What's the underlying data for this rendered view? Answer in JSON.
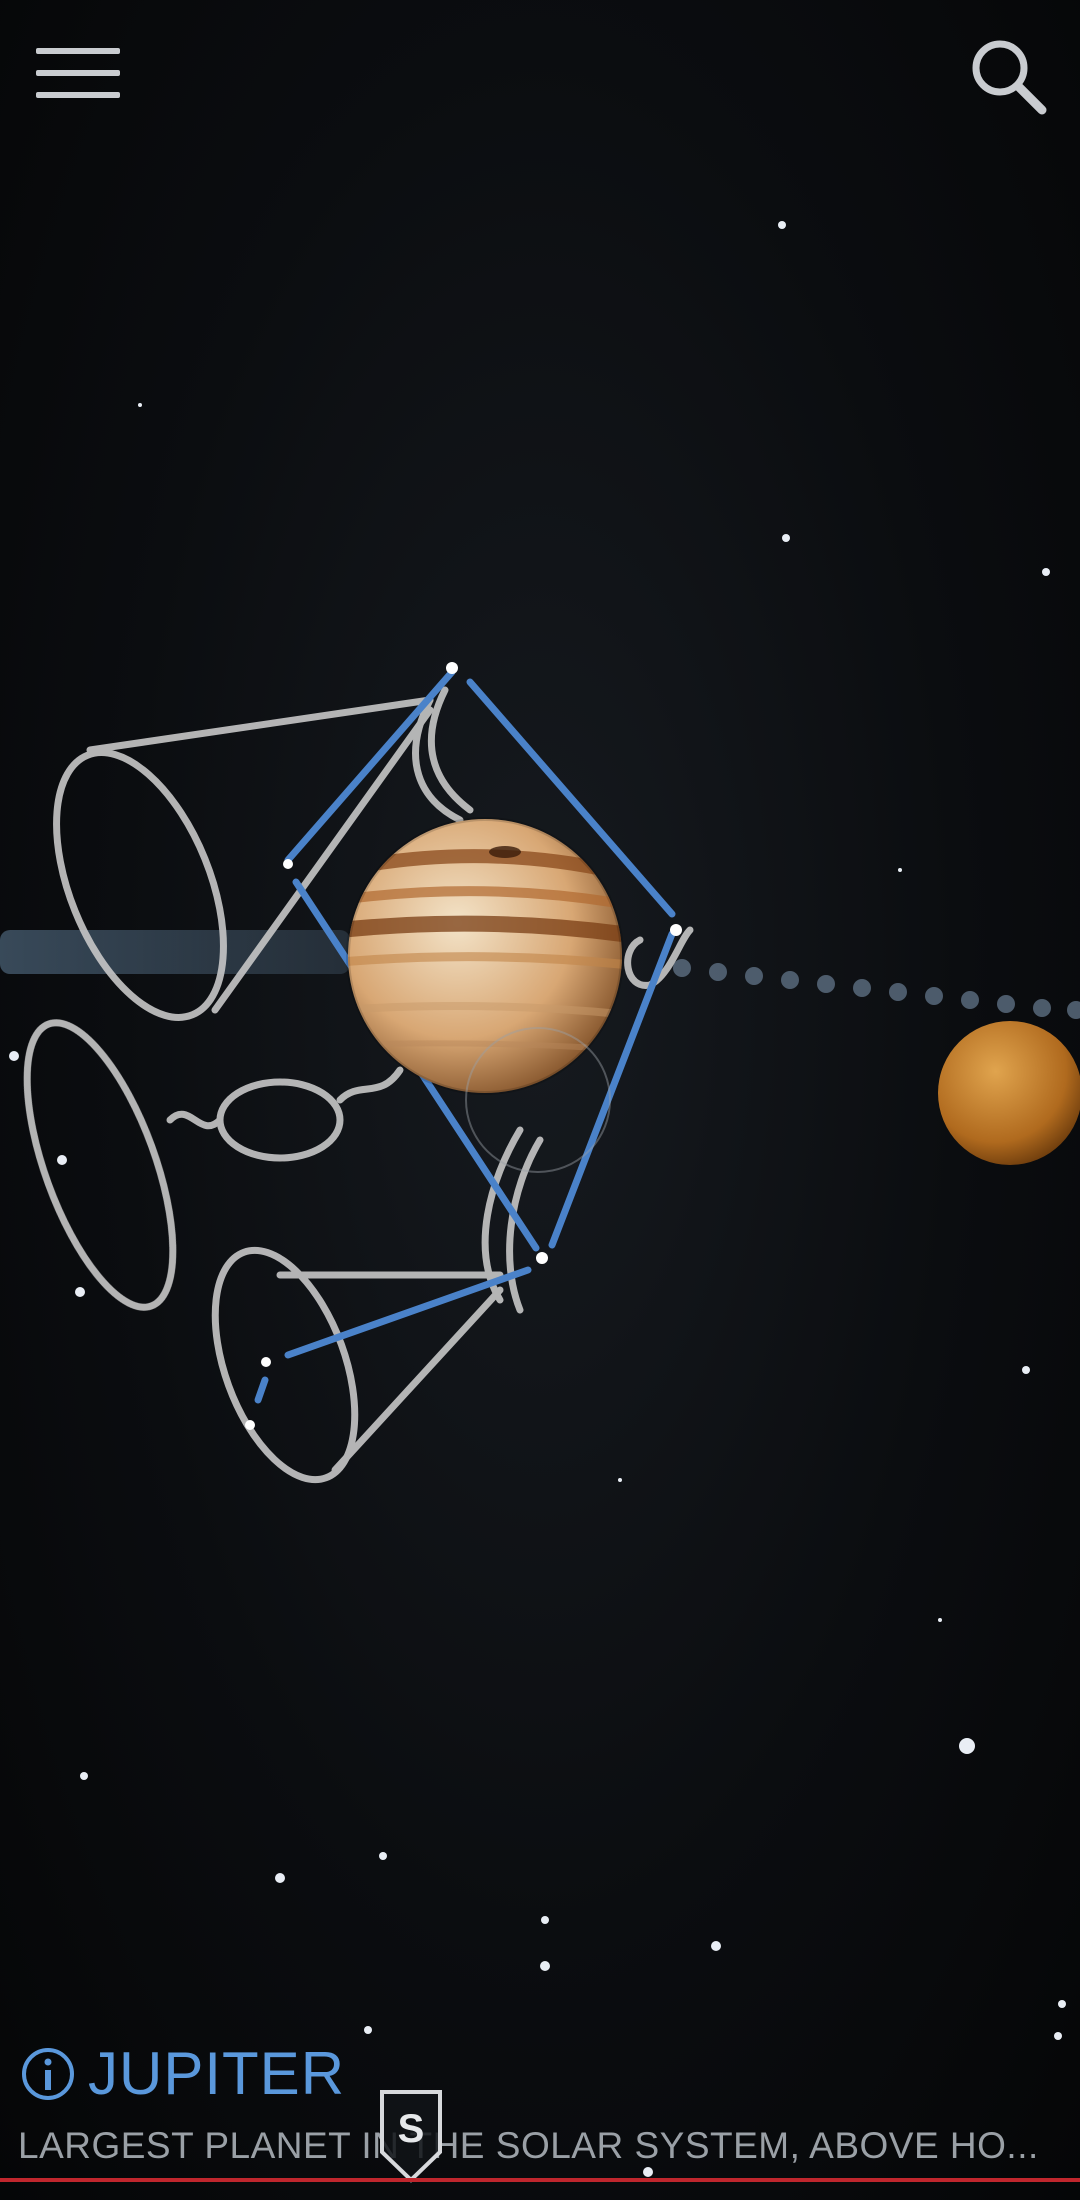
{
  "header": {
    "menu_icon": "hamburger-menu-icon",
    "search_icon": "search-icon"
  },
  "object": {
    "name": "JUPITER",
    "description": "LARGEST PLANET IN THE SOLAR SYSTEM, ABOVE HO...",
    "info_icon": "info-icon"
  },
  "compass": {
    "label": "S",
    "icon": "compass-marker-icon"
  },
  "colors": {
    "accent": "#5a98dc",
    "constellation_line": "#4a82c9",
    "horizon": "#c0262d",
    "artwork": "#c8c8c8"
  }
}
